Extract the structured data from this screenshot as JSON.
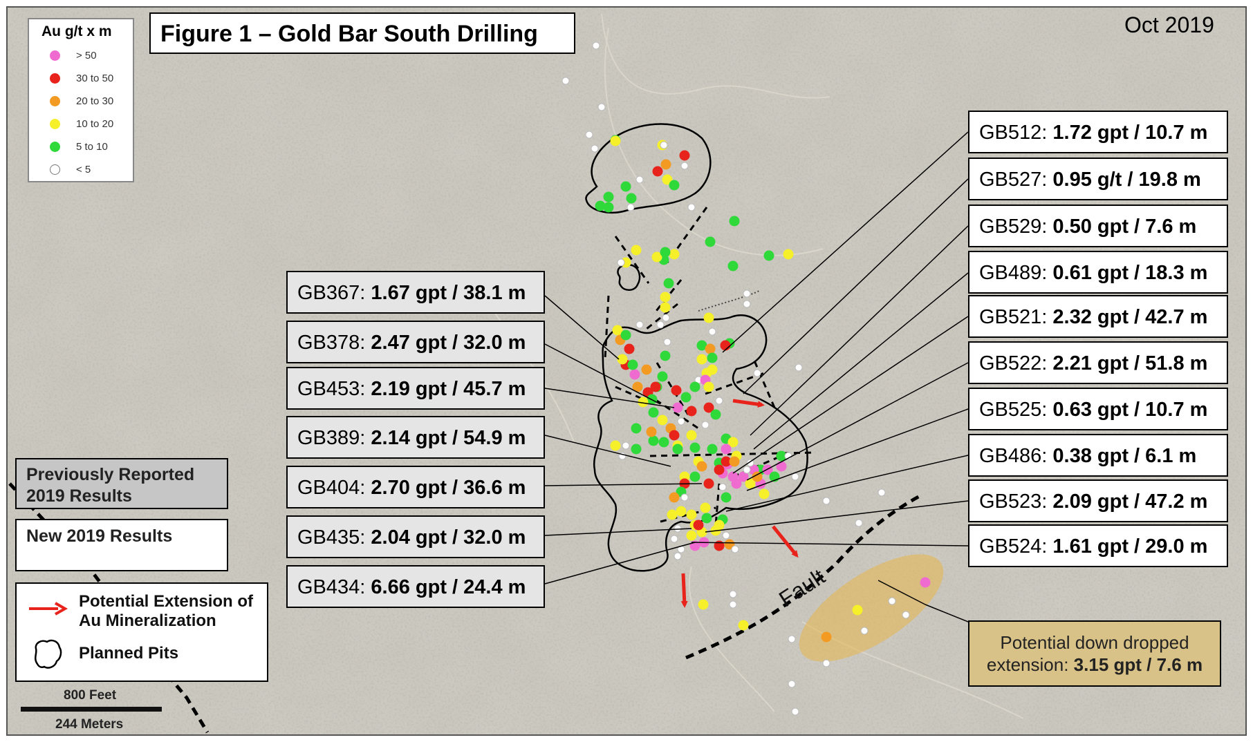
{
  "title": "Figure 1 – Gold Bar South Drilling",
  "date": "Oct 2019",
  "legend": {
    "title": "Au g/t x m",
    "items": [
      {
        "label": "> 50",
        "color": "#f06bd0"
      },
      {
        "label": "30 to 50",
        "color": "#e8231c"
      },
      {
        "label": "20 to 30",
        "color": "#f39a23"
      },
      {
        "label": "10 to 20",
        "color": "#f5f02a"
      },
      {
        "label": "5 to 10",
        "color": "#2fd93a"
      },
      {
        "label": "< 5",
        "color": "#ffffff"
      }
    ]
  },
  "status": {
    "previous": "Previously Reported 2019 Results",
    "new": "New 2019 Results"
  },
  "symbols": {
    "extension": "Potential Extension of Au Mineralization",
    "pits": "Planned Pits"
  },
  "scale": {
    "feet": "800 Feet",
    "meters": "244 Meters"
  },
  "fault_label": "Fault",
  "drill_results_previous": [
    {
      "hole": "GB367:",
      "result": "1.67 gpt / 38.1 m"
    },
    {
      "hole": "GB378:",
      "result": "2.47 gpt / 32.0 m"
    },
    {
      "hole": "GB453:",
      "result": "2.19 gpt / 45.7 m"
    },
    {
      "hole": "GB389:",
      "result": "2.14 gpt / 54.9 m"
    },
    {
      "hole": "GB404:",
      "result": "2.70 gpt / 36.6 m"
    },
    {
      "hole": "GB435:",
      "result": "2.04 gpt / 32.0 m"
    },
    {
      "hole": "GB434:",
      "result": "6.66 gpt / 24.4 m"
    }
  ],
  "drill_results_new": [
    {
      "hole": "GB512:",
      "result": "1.72 gpt / 10.7 m"
    },
    {
      "hole": "GB527:",
      "result": "0.95 g/t / 19.8 m"
    },
    {
      "hole": "GB529:",
      "result": "0.50 gpt / 7.6 m"
    },
    {
      "hole": "GB489:",
      "result": "0.61 gpt / 18.3 m"
    },
    {
      "hole": "GB521:",
      "result": "2.32 gpt / 42.7 m"
    },
    {
      "hole": "GB522:",
      "result": "2.21 gpt / 51.8 m"
    },
    {
      "hole": "GB525:",
      "result": "0.63 gpt / 10.7 m"
    },
    {
      "hole": "GB486:",
      "result": "0.38 gpt / 6.1 m"
    },
    {
      "hole": "GB523:",
      "result": "2.09 gpt / 47.2 m"
    },
    {
      "hole": "GB524:",
      "result": "1.61 gpt / 29.0 m"
    }
  ],
  "down_dropped": {
    "text": "Potential down dropped extension:",
    "result": "3.15 gpt / 7.6 m"
  }
}
